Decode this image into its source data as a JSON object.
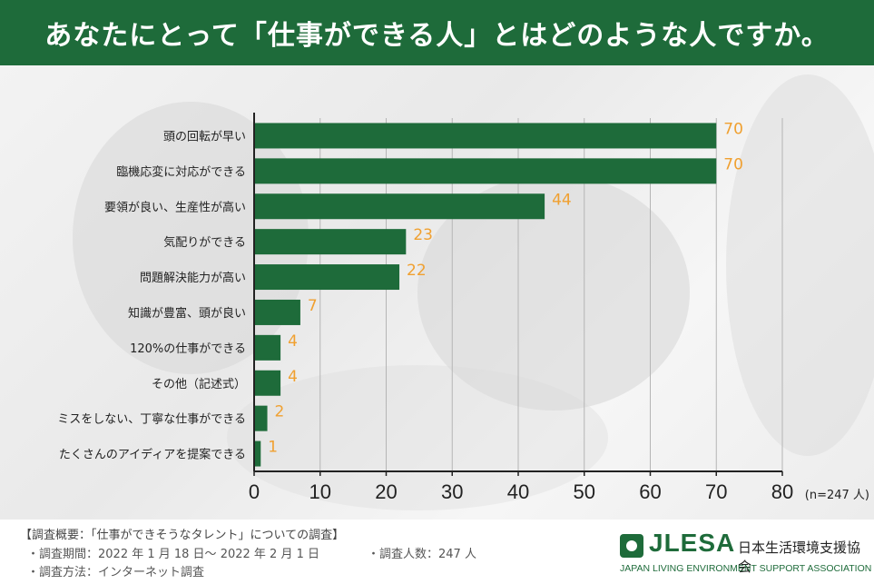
{
  "header": {
    "title": "あなたにとって「仕事ができる人」とはどのような人ですか。"
  },
  "colors": {
    "header_bg": "#1e6b3a",
    "bar": "#1e6b3a",
    "value_label": "#f0a030",
    "axis": "#222222"
  },
  "chart_data": {
    "type": "bar",
    "orientation": "horizontal",
    "title": "",
    "categories": [
      "頭の回転が早い",
      "臨機応変に対応ができる",
      "要領が良い、生産性が高い",
      "気配りができる",
      "問題解決能力が高い",
      "知識が豊富、頭が良い",
      "120%の仕事ができる",
      "その他（記述式）",
      "ミスをしない、丁寧な仕事ができる",
      "たくさんのアイディアを提案できる"
    ],
    "values": [
      70,
      70,
      44,
      23,
      22,
      7,
      4,
      4,
      2,
      1
    ],
    "xlim": [
      0,
      80
    ],
    "xticks": [
      0,
      10,
      20,
      30,
      40,
      50,
      60,
      70,
      80
    ],
    "unit_note": "(n=247 人)",
    "grid": true
  },
  "footer": {
    "survey_title": "【調査概要：「仕事ができそうなタレント」についての調査】",
    "period": "・調査期間：2022 年 1 月 18 日～ 2022 年 2 月 1 日",
    "count": "・調査人数：247 人",
    "method": "・調査方法：インターネット調査",
    "logo_abbr": "JLESA",
    "logo_jp": "日本生活環境支援協会",
    "logo_en": "JAPAN LIVING ENVIRONMENT SUPPORT ASSOCIATION"
  }
}
